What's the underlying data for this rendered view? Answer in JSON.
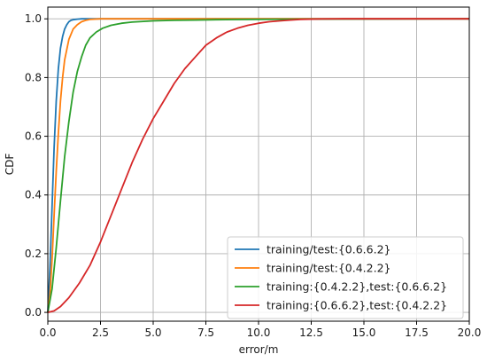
{
  "chart_data": {
    "type": "line",
    "title": "",
    "xlabel": "error/m",
    "ylabel": "CDF",
    "xlim": [
      0,
      20
    ],
    "ylim": [
      -0.03,
      1.04
    ],
    "xticks": [
      "0.0",
      "2.5",
      "5.0",
      "7.5",
      "10.0",
      "12.5",
      "15.0",
      "17.5",
      "20.0"
    ],
    "yticks": [
      "0.0",
      "0.2",
      "0.4",
      "0.6",
      "0.8",
      "1.0"
    ],
    "grid": true,
    "legend_position": "lower-right",
    "series": [
      {
        "name": "training/test:{0.6.6.2}",
        "color": "#1f77b4",
        "x": [
          0,
          0.1,
          0.2,
          0.3,
          0.4,
          0.5,
          0.6,
          0.7,
          0.8,
          0.9,
          1.0,
          1.1,
          1.2,
          1.4,
          1.6,
          2.0,
          20
        ],
        "y": [
          0,
          0.15,
          0.36,
          0.56,
          0.72,
          0.83,
          0.9,
          0.94,
          0.965,
          0.98,
          0.99,
          0.995,
          0.997,
          0.999,
          1.0,
          1.0,
          1.0
        ]
      },
      {
        "name": "training/test:{0.4.2.2}",
        "color": "#ff7f0e",
        "x": [
          0,
          0.1,
          0.2,
          0.3,
          0.4,
          0.5,
          0.6,
          0.7,
          0.8,
          1.0,
          1.2,
          1.4,
          1.6,
          1.8,
          2.0,
          2.5,
          20
        ],
        "y": [
          0,
          0.06,
          0.18,
          0.33,
          0.48,
          0.61,
          0.72,
          0.8,
          0.86,
          0.93,
          0.965,
          0.98,
          0.99,
          0.995,
          0.998,
          1.0,
          1.0
        ]
      },
      {
        "name": "training:{0.4.2.2},test:{0.6.6.2}",
        "color": "#2ca02c",
        "x": [
          0,
          0.2,
          0.4,
          0.6,
          0.8,
          1.0,
          1.2,
          1.4,
          1.6,
          1.8,
          2.0,
          2.3,
          2.6,
          3.0,
          3.5,
          4.0,
          5.0,
          6.0,
          7.0,
          8.0,
          10.0,
          12.0,
          20
        ],
        "y": [
          0,
          0.08,
          0.22,
          0.38,
          0.53,
          0.65,
          0.75,
          0.82,
          0.87,
          0.91,
          0.935,
          0.955,
          0.968,
          0.978,
          0.985,
          0.989,
          0.993,
          0.995,
          0.996,
          0.997,
          0.998,
          0.999,
          1.0
        ]
      },
      {
        "name": "training:{0.6.6.2},test:{0.4.2.2}",
        "color": "#d62728",
        "x": [
          0,
          0.3,
          0.6,
          1.0,
          1.5,
          2.0,
          2.5,
          3.0,
          3.5,
          4.0,
          4.5,
          5.0,
          5.5,
          6.0,
          6.5,
          7.0,
          7.5,
          8.0,
          8.5,
          9.0,
          9.5,
          10.0,
          10.5,
          11.0,
          11.5,
          12.0,
          12.5,
          13.0,
          14.0,
          16.0,
          20
        ],
        "y": [
          0,
          0.005,
          0.02,
          0.05,
          0.1,
          0.16,
          0.24,
          0.33,
          0.42,
          0.51,
          0.59,
          0.66,
          0.72,
          0.78,
          0.83,
          0.87,
          0.91,
          0.935,
          0.955,
          0.968,
          0.978,
          0.985,
          0.99,
          0.993,
          0.996,
          0.998,
          0.999,
          0.9995,
          1.0,
          1.0,
          1.0
        ]
      }
    ]
  }
}
